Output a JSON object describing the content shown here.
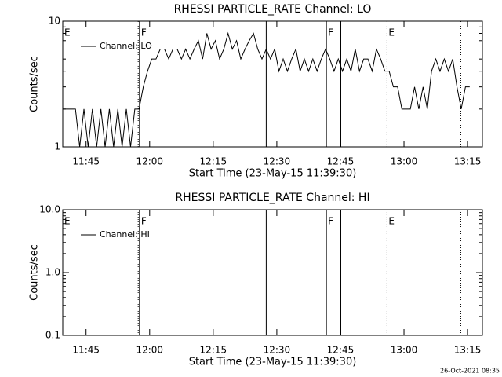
{
  "chart_data": [
    {
      "type": "line",
      "title": "RHESSI PARTICLE_RATE Channel: LO",
      "ylabel": "Counts/sec",
      "xlabel": "Start Time (23-May-15 11:39:30)",
      "log_y": true,
      "ylim": [
        1,
        10
      ],
      "yticks": [
        1,
        10
      ],
      "xlim": [
        0,
        99
      ],
      "xticks": [
        {
          "value": 5.5,
          "label": "11:45"
        },
        {
          "value": 20.5,
          "label": "12:00"
        },
        {
          "value": 35.5,
          "label": "12:15"
        },
        {
          "value": 50.5,
          "label": "12:30"
        },
        {
          "value": 65.5,
          "label": "12:45"
        },
        {
          "value": 80.5,
          "label": "13:00"
        },
        {
          "value": 95.5,
          "label": "13:15"
        }
      ],
      "x": [
        0,
        1,
        2,
        3,
        4,
        5,
        6,
        7,
        8,
        9,
        10,
        11,
        12,
        13,
        14,
        15,
        16,
        17,
        18,
        19,
        20,
        21,
        22,
        23,
        24,
        25,
        26,
        27,
        28,
        29,
        30,
        31,
        32,
        33,
        34,
        35,
        36,
        37,
        38,
        39,
        40,
        41,
        42,
        43,
        44,
        45,
        46,
        47,
        48,
        49,
        50,
        51,
        52,
        53,
        54,
        55,
        56,
        57,
        58,
        59,
        60,
        61,
        62,
        63,
        64,
        65,
        66,
        67,
        68,
        69,
        70,
        71,
        72,
        73,
        74,
        75,
        76,
        77,
        78,
        79,
        80,
        81,
        82,
        83,
        84,
        85,
        86,
        87,
        88,
        89,
        90,
        91,
        92,
        93,
        94,
        95,
        96
      ],
      "series": [
        {
          "name": "Channel: LO",
          "color": "#000000",
          "values": [
            2,
            2,
            2,
            2,
            1,
            2,
            1,
            2,
            1,
            2,
            1,
            2,
            1,
            2,
            1,
            2,
            1,
            2,
            2,
            3,
            4,
            5,
            5,
            6,
            6,
            5,
            6,
            6,
            5,
            6,
            5,
            6,
            7,
            5,
            8,
            6,
            7,
            5,
            6,
            8,
            6,
            7,
            5,
            6,
            7,
            8,
            6,
            5,
            6,
            5,
            6,
            4,
            5,
            4,
            5,
            6,
            4,
            5,
            4,
            5,
            4,
            5,
            6,
            5,
            4,
            5,
            4,
            5,
            4,
            6,
            4,
            5,
            5,
            4,
            6,
            5,
            4,
            4,
            3,
            3,
            2,
            2,
            2,
            3,
            2,
            3,
            2,
            4,
            5,
            4,
            5,
            4,
            5,
            3,
            2,
            3,
            3
          ]
        }
      ],
      "events": [
        {
          "x": 0,
          "label": "E",
          "style": "dotted"
        },
        {
          "x": 17.8,
          "style": "dotted"
        },
        {
          "x": 18.1,
          "label": "F",
          "style": "solid"
        },
        {
          "x": 48,
          "style": "solid"
        },
        {
          "x": 62.2,
          "label": "F",
          "style": "solid"
        },
        {
          "x": 65.6,
          "style": "solid"
        },
        {
          "x": 76.5,
          "label": "E",
          "style": "dotted"
        },
        {
          "x": 93.9,
          "style": "dotted"
        }
      ]
    },
    {
      "type": "line",
      "title": "RHESSI PARTICLE_RATE Channel: HI",
      "ylabel": "Counts/sec",
      "xlabel": "Start Time (23-May-15 11:39:30)",
      "log_y": true,
      "ylim": [
        0.1,
        10
      ],
      "yticks": [
        {
          "value": 0.1,
          "label": "0.1"
        },
        {
          "value": 1,
          "label": "1.0"
        },
        {
          "value": 10,
          "label": "10.0"
        }
      ],
      "xlim": [
        0,
        99
      ],
      "xticks": [
        {
          "value": 5.5,
          "label": "11:45"
        },
        {
          "value": 20.5,
          "label": "12:00"
        },
        {
          "value": 35.5,
          "label": "12:15"
        },
        {
          "value": 50.5,
          "label": "12:30"
        },
        {
          "value": 65.5,
          "label": "12:45"
        },
        {
          "value": 80.5,
          "label": "13:00"
        },
        {
          "value": 95.5,
          "label": "13:15"
        }
      ],
      "x": [],
      "series": [
        {
          "name": "Channel: HI",
          "color": "#000000",
          "values": []
        }
      ],
      "events": [
        {
          "x": 0,
          "label": "E",
          "style": "dotted"
        },
        {
          "x": 17.8,
          "style": "dotted"
        },
        {
          "x": 18.1,
          "label": "F",
          "style": "solid"
        },
        {
          "x": 48,
          "style": "solid"
        },
        {
          "x": 62.2,
          "label": "F",
          "style": "solid"
        },
        {
          "x": 65.6,
          "style": "solid"
        },
        {
          "x": 76.5,
          "label": "E",
          "style": "dotted"
        },
        {
          "x": 93.9,
          "style": "dotted"
        }
      ]
    }
  ],
  "footer": "26-Oct-2021 08:35"
}
